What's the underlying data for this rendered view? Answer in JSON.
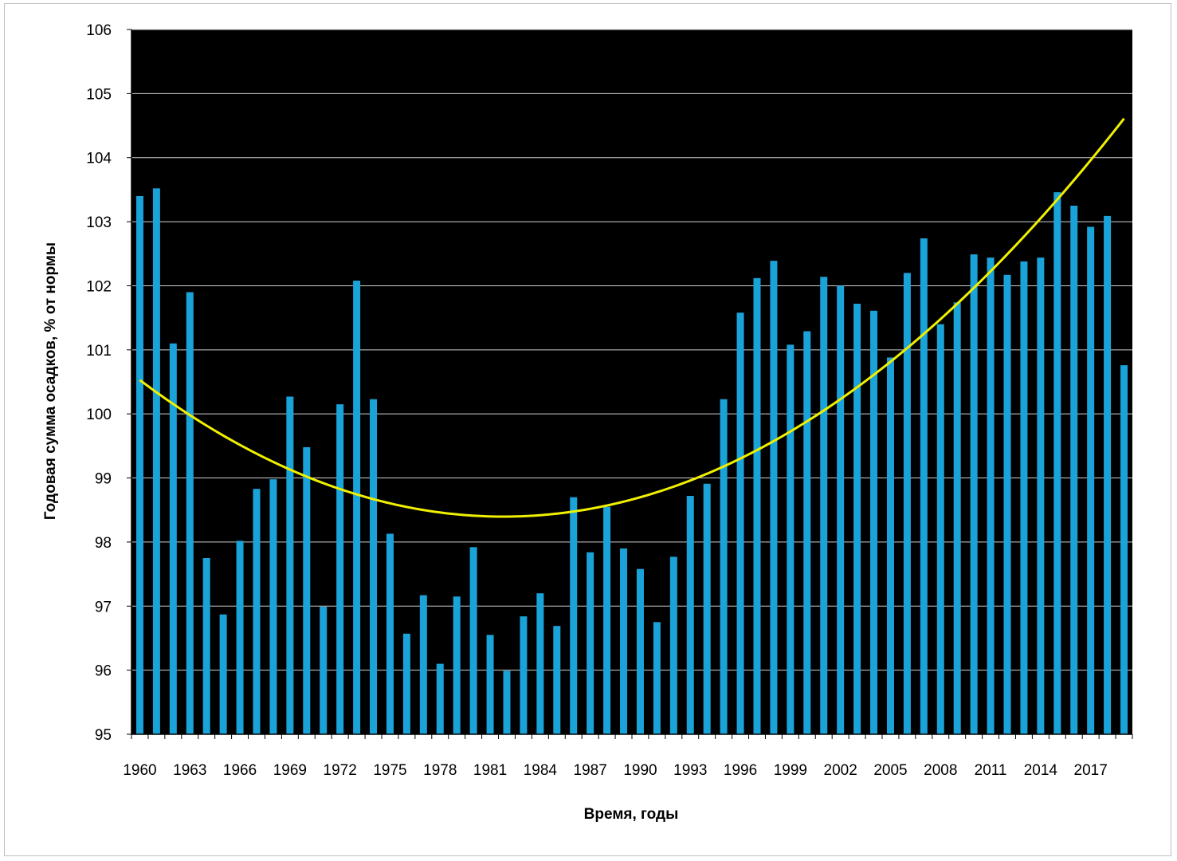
{
  "chart_data": {
    "type": "bar",
    "title": "",
    "xlabel": "Время, годы",
    "ylabel": "Годовая сумма осадков, % от нормы",
    "ylim": [
      95,
      106
    ],
    "yticks": [
      95,
      96,
      97,
      98,
      99,
      100,
      101,
      102,
      103,
      104,
      105,
      106
    ],
    "xtick_labels": [
      "1960",
      "1963",
      "1966",
      "1969",
      "1972",
      "1975",
      "1978",
      "1981",
      "1984",
      "1987",
      "1990",
      "1993",
      "1996",
      "1999",
      "2002",
      "2005",
      "2008",
      "2011",
      "2014",
      "2017"
    ],
    "grid": true,
    "legend": "none",
    "plot_background": "#000000",
    "bar_color": "#1aa3d9",
    "trend_color": "#f0f000",
    "categories": [
      1960,
      1961,
      1962,
      1963,
      1964,
      1965,
      1966,
      1967,
      1968,
      1969,
      1970,
      1971,
      1972,
      1973,
      1974,
      1975,
      1976,
      1977,
      1978,
      1979,
      1980,
      1981,
      1982,
      1983,
      1984,
      1985,
      1986,
      1987,
      1988,
      1989,
      1990,
      1991,
      1992,
      1993,
      1994,
      1995,
      1996,
      1997,
      1998,
      1999,
      2000,
      2001,
      2002,
      2003,
      2004,
      2005,
      2006,
      2007,
      2008,
      2009,
      2010,
      2011,
      2012,
      2013,
      2014,
      2015,
      2016,
      2017,
      2018,
      2019
    ],
    "values": [
      103.4,
      103.52,
      101.1,
      101.9,
      97.75,
      96.87,
      98.02,
      98.83,
      98.98,
      100.27,
      99.48,
      96.99,
      100.15,
      102.08,
      100.23,
      98.13,
      96.57,
      97.17,
      96.1,
      97.15,
      97.92,
      96.55,
      95.99,
      96.84,
      97.2,
      96.69,
      98.7,
      97.84,
      98.55,
      97.9,
      97.58,
      96.75,
      97.77,
      98.72,
      98.91,
      100.23,
      101.58,
      102.12,
      102.39,
      101.08,
      101.29,
      102.14,
      102.0,
      101.72,
      101.61,
      100.88,
      102.2,
      102.74,
      101.4,
      101.74,
      102.49,
      102.44,
      102.17,
      102.38,
      102.44,
      103.46,
      103.25,
      102.92,
      103.09,
      100.76
    ],
    "trend": {
      "type": "polynomial-2",
      "x": [
        1960,
        1972,
        1982,
        1993,
        2005,
        2012,
        2019
      ],
      "y": [
        100.55,
        98.8,
        98.38,
        98.95,
        100.9,
        102.45,
        104.6
      ]
    }
  }
}
